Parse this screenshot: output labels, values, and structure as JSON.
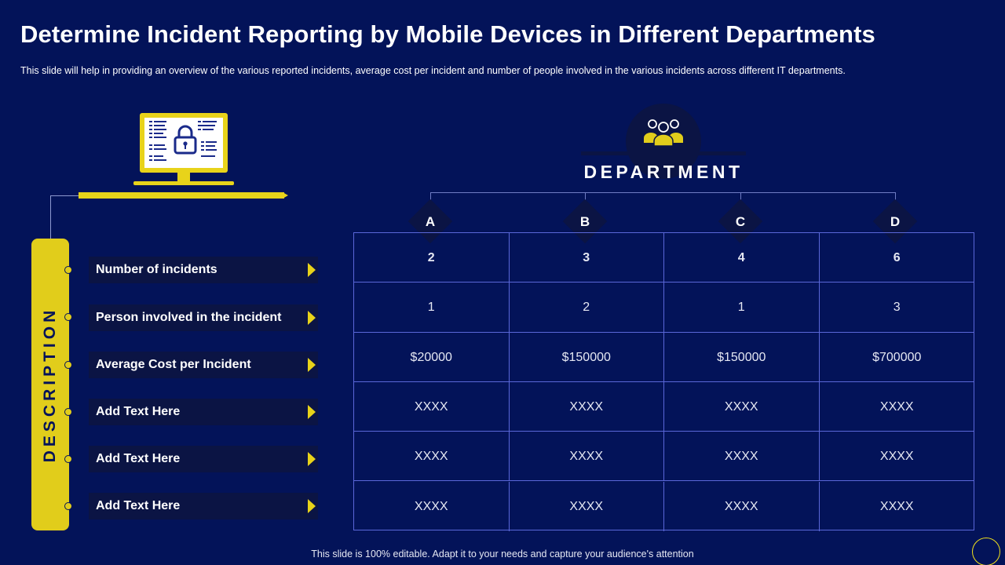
{
  "title": "Determine Incident Reporting by Mobile Devices in Different Departments",
  "subtitle": "This slide will help in providing  an overview  of the various  reported  incidents, average  cost per incident and  number of people involved  in the various  incidents across different  IT departments.",
  "footer": "This slide is 100% editable. Adapt it to your needs and capture your audience's attention",
  "colors": {
    "background": "#031359",
    "accent": "#e1cd1b",
    "dark_panel": "#0b1444",
    "grid_line": "#5a67d8"
  },
  "icons": {
    "monitor": "monitor-lock-icon",
    "department": "team-people-icon"
  },
  "description": {
    "label": "DESCRIPTION",
    "rows": [
      "Number of incidents",
      "Person involved in the incident",
      "Average Cost per Incident",
      "Add Text Here",
      "Add Text Here",
      "Add Text Here"
    ]
  },
  "department": {
    "title": "DEPARTMENT",
    "columns": [
      "A",
      "B",
      "C",
      "D"
    ]
  },
  "table": {
    "rows": [
      [
        "2",
        "3",
        "4",
        "6"
      ],
      [
        "1",
        "2",
        "1",
        "3"
      ],
      [
        "$20000",
        "$150000",
        "$150000",
        "$700000"
      ],
      [
        "XXXX",
        "XXXX",
        "XXXX",
        "XXXX"
      ],
      [
        "XXXX",
        "XXXX",
        "XXXX",
        "XXXX"
      ],
      [
        "XXXX",
        "XXXX",
        "XXXX",
        "XXXX"
      ]
    ]
  }
}
